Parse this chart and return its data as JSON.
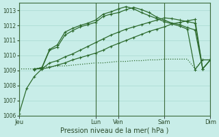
{
  "title": "",
  "xlabel": "Pression niveau de la mer( hPa )",
  "ylabel": "",
  "bg_color": "#c8ede8",
  "grid_color": "#a8d8d0",
  "line_color": "#2d6a2d",
  "ylim": [
    1006,
    1013.5
  ],
  "yticks": [
    1006,
    1007,
    1008,
    1009,
    1010,
    1011,
    1012,
    1013
  ],
  "xtick_labels": [
    "Jeu",
    "Lun",
    "Ven",
    "Sam",
    "Dim"
  ],
  "xtick_positions": [
    0,
    10,
    13,
    19,
    25
  ],
  "vline_positions": [
    0,
    10,
    13,
    19,
    25
  ],
  "total_x": 25,
  "series1_x": [
    0,
    1,
    2,
    3,
    4,
    5,
    6,
    7,
    8,
    9,
    10,
    11,
    12,
    13,
    14,
    15,
    16,
    17,
    18,
    19,
    20,
    21,
    22,
    23,
    24,
    25
  ],
  "series1_y": [
    1006.1,
    1007.8,
    1008.6,
    1009.1,
    1009.2,
    1009.35,
    1009.5,
    1009.7,
    1009.85,
    1010.0,
    1010.15,
    1010.35,
    1010.6,
    1010.8,
    1011.0,
    1011.2,
    1011.4,
    1011.6,
    1011.75,
    1011.9,
    1012.1,
    1012.2,
    1012.3,
    1012.4,
    1009.1,
    1009.7
  ],
  "series2_x": [
    2,
    3,
    4,
    5,
    6,
    7,
    8,
    9,
    10,
    11,
    12,
    13,
    14,
    15,
    16,
    17,
    18,
    19,
    20,
    21,
    22,
    23,
    24,
    25
  ],
  "series2_y": [
    1009.1,
    1009.1,
    1009.5,
    1009.65,
    1009.9,
    1010.1,
    1010.35,
    1010.6,
    1010.85,
    1011.1,
    1011.35,
    1011.55,
    1011.75,
    1011.9,
    1012.05,
    1012.2,
    1012.35,
    1012.5,
    1012.45,
    1012.35,
    1012.25,
    1012.15,
    1009.1,
    1009.7
  ],
  "series3_x": [
    2,
    3,
    4,
    5,
    6,
    7,
    8,
    9,
    10,
    11,
    12,
    13,
    14,
    15,
    16,
    17,
    18,
    19,
    20,
    21,
    22,
    23,
    24,
    25
  ],
  "series3_y": [
    1009.1,
    1009.15,
    1010.35,
    1010.55,
    1011.35,
    1011.65,
    1011.9,
    1012.05,
    1012.2,
    1012.6,
    1012.75,
    1012.85,
    1013.05,
    1013.2,
    1013.05,
    1012.85,
    1012.55,
    1012.35,
    1012.15,
    1012.05,
    1011.85,
    1011.7,
    1009.1,
    1009.7
  ],
  "series4_x": [
    2,
    3,
    4,
    5,
    6,
    7,
    8,
    9,
    10,
    11,
    12,
    13,
    14,
    15,
    16,
    17,
    18,
    19,
    20,
    21,
    22,
    23,
    24,
    25
  ],
  "series4_y": [
    1009.05,
    1009.2,
    1010.4,
    1010.7,
    1011.55,
    1011.8,
    1012.0,
    1012.15,
    1012.35,
    1012.75,
    1012.9,
    1013.1,
    1013.25,
    1013.1,
    1012.85,
    1012.65,
    1012.45,
    1012.25,
    1012.1,
    1011.95,
    1011.75,
    1009.05,
    1009.7,
    1009.7
  ],
  "series5_x": [
    0,
    1,
    2,
    3,
    4,
    5,
    6,
    7,
    8,
    9,
    10,
    11,
    12,
    13,
    14,
    15,
    16,
    17,
    18,
    19,
    20,
    21,
    22,
    23,
    24,
    25
  ],
  "series5_y": [
    1009.1,
    1009.1,
    1009.1,
    1009.2,
    1009.25,
    1009.3,
    1009.3,
    1009.35,
    1009.4,
    1009.45,
    1009.5,
    1009.5,
    1009.55,
    1009.6,
    1009.6,
    1009.65,
    1009.65,
    1009.7,
    1009.7,
    1009.75,
    1009.75,
    1009.75,
    1009.75,
    1009.1,
    1009.7,
    1009.7
  ]
}
